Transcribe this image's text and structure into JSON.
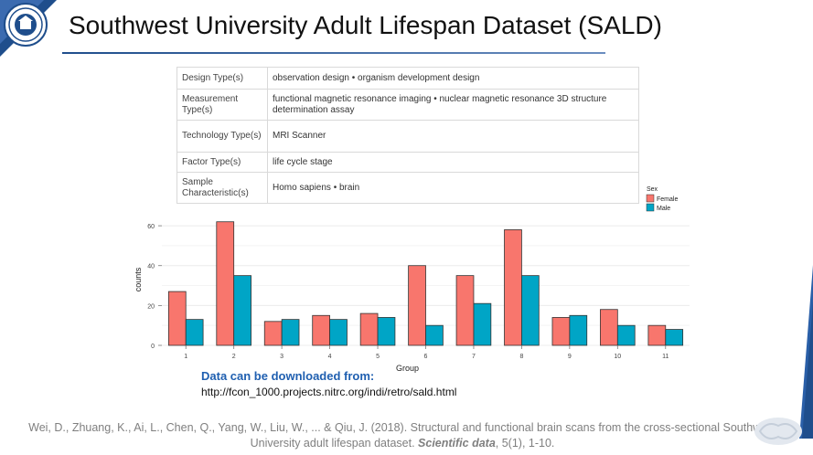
{
  "title": "Southwest University Adult Lifespan Dataset (SALD)",
  "logo": {
    "icon": "university-seal-icon"
  },
  "metadata_table": [
    {
      "key": "Design Type(s)",
      "value": "observation design • organism development design"
    },
    {
      "key": "Measurement Type(s)",
      "value": "functional magnetic resonance imaging • nuclear magnetic resonance 3D structure determination assay"
    },
    {
      "key": "Technology Type(s)",
      "value": "MRI Scanner"
    },
    {
      "key": "Factor Type(s)",
      "value": "life cycle stage"
    },
    {
      "key": "Sample Characteristic(s)",
      "value": "Homo sapiens • brain"
    }
  ],
  "chart_data": {
    "type": "bar",
    "xlabel": "Group",
    "ylabel": "counts",
    "categories": [
      "1",
      "2",
      "3",
      "4",
      "5",
      "6",
      "7",
      "8",
      "9",
      "10",
      "11"
    ],
    "ylim": [
      0,
      66
    ],
    "yticks": [
      0,
      20,
      40,
      60
    ],
    "legend_title": "Sex",
    "legend_position": "top-right",
    "grid": true,
    "series": [
      {
        "name": "Female",
        "color": "#f8766d",
        "values": [
          27,
          62,
          12,
          15,
          16,
          40,
          35,
          58,
          14,
          18,
          10
        ]
      },
      {
        "name": "Male",
        "color": "#00a5c6",
        "values": [
          13,
          35,
          13,
          13,
          14,
          10,
          21,
          35,
          15,
          10,
          8
        ]
      }
    ]
  },
  "download": {
    "label": "Data can be downloaded from:",
    "url": "http://fcon_1000.projects.nitrc.org/indi/retro/sald.html"
  },
  "citation": {
    "text_before": "Wei, D., Zhuang, K., Ai, L., Chen, Q., Yang, W., Liu, W., ... & Qiu, J. (2018). Structural and functional brain scans from the cross-sectional Southwest University adult lifespan dataset. ",
    "journal": "Scientific data",
    "text_after": ", 5(1), 1-10."
  },
  "colors": {
    "accent": "#1f4e8c",
    "link": "#1f5fb0"
  }
}
